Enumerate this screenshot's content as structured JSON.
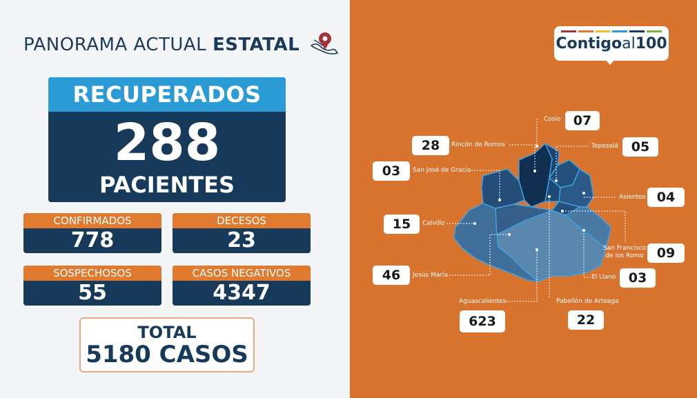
{
  "header": {
    "title_light": "PANORAMA ACTUAL",
    "title_bold": "ESTATAL",
    "icon": "mexico-pin-icon"
  },
  "recuperados": {
    "label": "RECUPERADOS",
    "value": "288",
    "unit": "PACIENTES"
  },
  "stats": {
    "confirmados": {
      "label": "CONFIRMADOS",
      "value": "778"
    },
    "decesos": {
      "label": "DECESOS",
      "value": "23"
    },
    "sospechosos": {
      "label": "SOSPECHOSOS",
      "value": "55"
    },
    "negativos": {
      "label": "CASOS NEGATIVOS",
      "value": "4347"
    }
  },
  "total": {
    "label": "TOTAL",
    "value": "5180 CASOS"
  },
  "logo": {
    "bold": "Contigo",
    "light": "al",
    "num": "100"
  },
  "municipios": {
    "cosio": {
      "name": "Cosío",
      "value": "07"
    },
    "rincon": {
      "name": "Rincón de Romos",
      "value": "28"
    },
    "tepezala": {
      "name": "Tepezalá",
      "value": "05"
    },
    "sanjose": {
      "name": "San José de Gracia",
      "value": "03"
    },
    "asientos": {
      "name": "Asientos",
      "value": "04"
    },
    "calvillo": {
      "name": "Calvillo",
      "value": "15"
    },
    "sanfrancisco": {
      "name": "San Francisco\nde los Romo",
      "value": "09"
    },
    "jesusmaria": {
      "name": "Jesús María",
      "value": "46"
    },
    "llano": {
      "name": "El Llano",
      "value": "03"
    },
    "aguascalientes": {
      "name": "Aguascalientes",
      "value": "623"
    },
    "pabellon": {
      "name": "Pabellón de Arteaga",
      "value": "22"
    }
  },
  "colors": {
    "navy": "#173a5a",
    "blue": "#2b9bd6",
    "orange": "#d9742f",
    "orange_label": "#e07a2f"
  }
}
